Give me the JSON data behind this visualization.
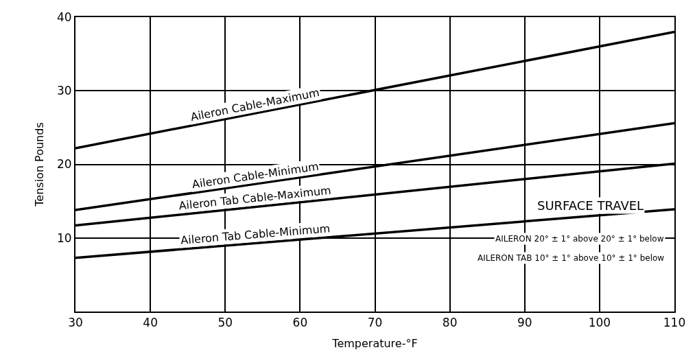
{
  "chart_data": {
    "type": "line",
    "xlabel": "Temperature-°F",
    "ylabel": "Tension Pounds",
    "x": [
      30,
      110
    ],
    "series": [
      {
        "name": "Aileron Cable-Maximum",
        "color": "#000000",
        "values": [
          22.2,
          38.0
        ]
      },
      {
        "name": "Aileron Cable-Minimum",
        "color": "#000000",
        "values": [
          13.8,
          25.6
        ]
      },
      {
        "name": "Aileron Tab Cable-Maximum",
        "color": "#000000",
        "values": [
          11.7,
          20.1
        ]
      },
      {
        "name": "Aileron Tab Cable-Minimum",
        "color": "#000000",
        "values": [
          7.3,
          13.9
        ]
      }
    ],
    "xlim": [
      30,
      110
    ],
    "xticks": [
      30,
      40,
      50,
      60,
      70,
      80,
      90,
      100,
      110
    ],
    "ylim": [
      0,
      40
    ],
    "yticks": [
      {
        "value": 0,
        "label": null
      },
      10,
      20,
      30,
      40
    ],
    "grid": true,
    "legend": false,
    "marker": "none",
    "line_style": "solid",
    "annotations": [
      "SURFACE TRAVEL",
      "AILERON 20° ± 1° above 20° ± 1° below",
      "AILERON TAB 10° ± 1° above 10° ± 1° below"
    ]
  }
}
